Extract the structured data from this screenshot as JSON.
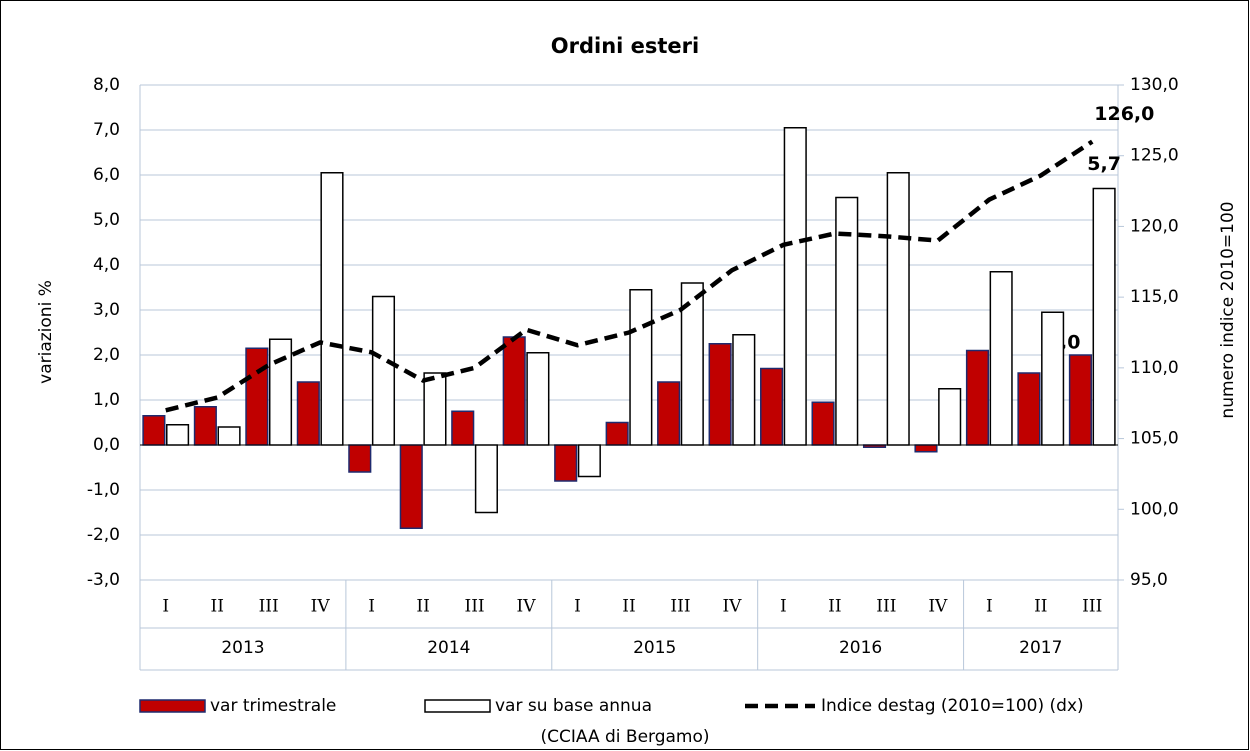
{
  "chart_data": {
    "type": "bar",
    "title": "Ordini esteri",
    "y_label": "variazioni %",
    "y2_label": "numero indice 2010=100",
    "source": "(CCIAA di Bergamo)",
    "categories": [
      "I",
      "II",
      "III",
      "IV",
      "I",
      "II",
      "III",
      "IV",
      "I",
      "II",
      "III",
      "IV",
      "I",
      "II",
      "III",
      "IV",
      "I",
      "II",
      "III"
    ],
    "category_groups": [
      {
        "label": "2013",
        "count": 4
      },
      {
        "label": "2014",
        "count": 4
      },
      {
        "label": "2015",
        "count": 4
      },
      {
        "label": "2016",
        "count": 4
      },
      {
        "label": "2017",
        "count": 3
      }
    ],
    "series": [
      {
        "name": "var trimestrale",
        "type": "bar",
        "color": "#c00000",
        "stroke": "#1f2a6e",
        "values": [
          0.65,
          0.85,
          2.15,
          1.4,
          -0.6,
          -1.85,
          0.75,
          2.4,
          -0.8,
          0.5,
          1.4,
          2.25,
          1.7,
          0.95,
          -0.05,
          -0.15,
          2.1,
          1.6,
          2.0
        ],
        "value_labels": [
          null,
          null,
          null,
          null,
          null,
          null,
          null,
          null,
          null,
          null,
          null,
          null,
          null,
          null,
          null,
          null,
          null,
          null,
          "2,0"
        ],
        "label_color": "#c00000"
      },
      {
        "name": "var su base annua",
        "type": "bar",
        "color": "#ffffff",
        "stroke": "#000000",
        "values": [
          0.45,
          0.4,
          2.35,
          6.05,
          3.3,
          1.6,
          -1.5,
          2.05,
          -0.7,
          3.45,
          3.6,
          2.45,
          7.05,
          5.5,
          6.05,
          1.25,
          3.85,
          2.95,
          5.7
        ],
        "value_labels": [
          null,
          null,
          null,
          null,
          null,
          null,
          null,
          null,
          null,
          null,
          null,
          null,
          null,
          null,
          null,
          null,
          null,
          null,
          "5,7"
        ],
        "label_color": "#000000"
      },
      {
        "name": "Indice destag (2010=100) (dx)",
        "type": "line",
        "axis": "y2",
        "color": "#000000",
        "dashed": true,
        "values": [
          107.0,
          107.9,
          110.2,
          111.8,
          111.1,
          109.1,
          110.0,
          112.7,
          111.6,
          112.5,
          114.1,
          116.9,
          118.7,
          119.5,
          119.3,
          119.0,
          121.9,
          123.6,
          126.0
        ],
        "value_labels": [
          null,
          null,
          null,
          null,
          null,
          null,
          null,
          null,
          null,
          null,
          null,
          null,
          null,
          null,
          null,
          null,
          null,
          null,
          "126,0"
        ],
        "label_color": "#000000"
      }
    ],
    "ylim": [
      -3,
      8
    ],
    "yticks": [
      {
        "value": -3,
        "label": "-3,0"
      },
      {
        "value": -2,
        "label": "-2,0"
      },
      {
        "value": -1,
        "label": "-1,0"
      },
      {
        "value": 0,
        "label": "0,0"
      },
      {
        "value": 1,
        "label": "1,0"
      },
      {
        "value": 2,
        "label": "2,0"
      },
      {
        "value": 3,
        "label": "3,0"
      },
      {
        "value": 4,
        "label": "4,0"
      },
      {
        "value": 5,
        "label": "5,0"
      },
      {
        "value": 6,
        "label": "6,0"
      },
      {
        "value": 7,
        "label": "7,0"
      },
      {
        "value": 8,
        "label": "8,0"
      }
    ],
    "y2lim": [
      95,
      130
    ],
    "y2ticks": [
      {
        "value": 95,
        "label": "95,0"
      },
      {
        "value": 100,
        "label": "100,0"
      },
      {
        "value": 105,
        "label": "105,0"
      },
      {
        "value": 110,
        "label": "110,0"
      },
      {
        "value": 115,
        "label": "115,0"
      },
      {
        "value": 120,
        "label": "120,0"
      },
      {
        "value": 125,
        "label": "125,0"
      },
      {
        "value": 130,
        "label": "130,0"
      }
    ],
    "grid": true,
    "legend": "bottom"
  }
}
